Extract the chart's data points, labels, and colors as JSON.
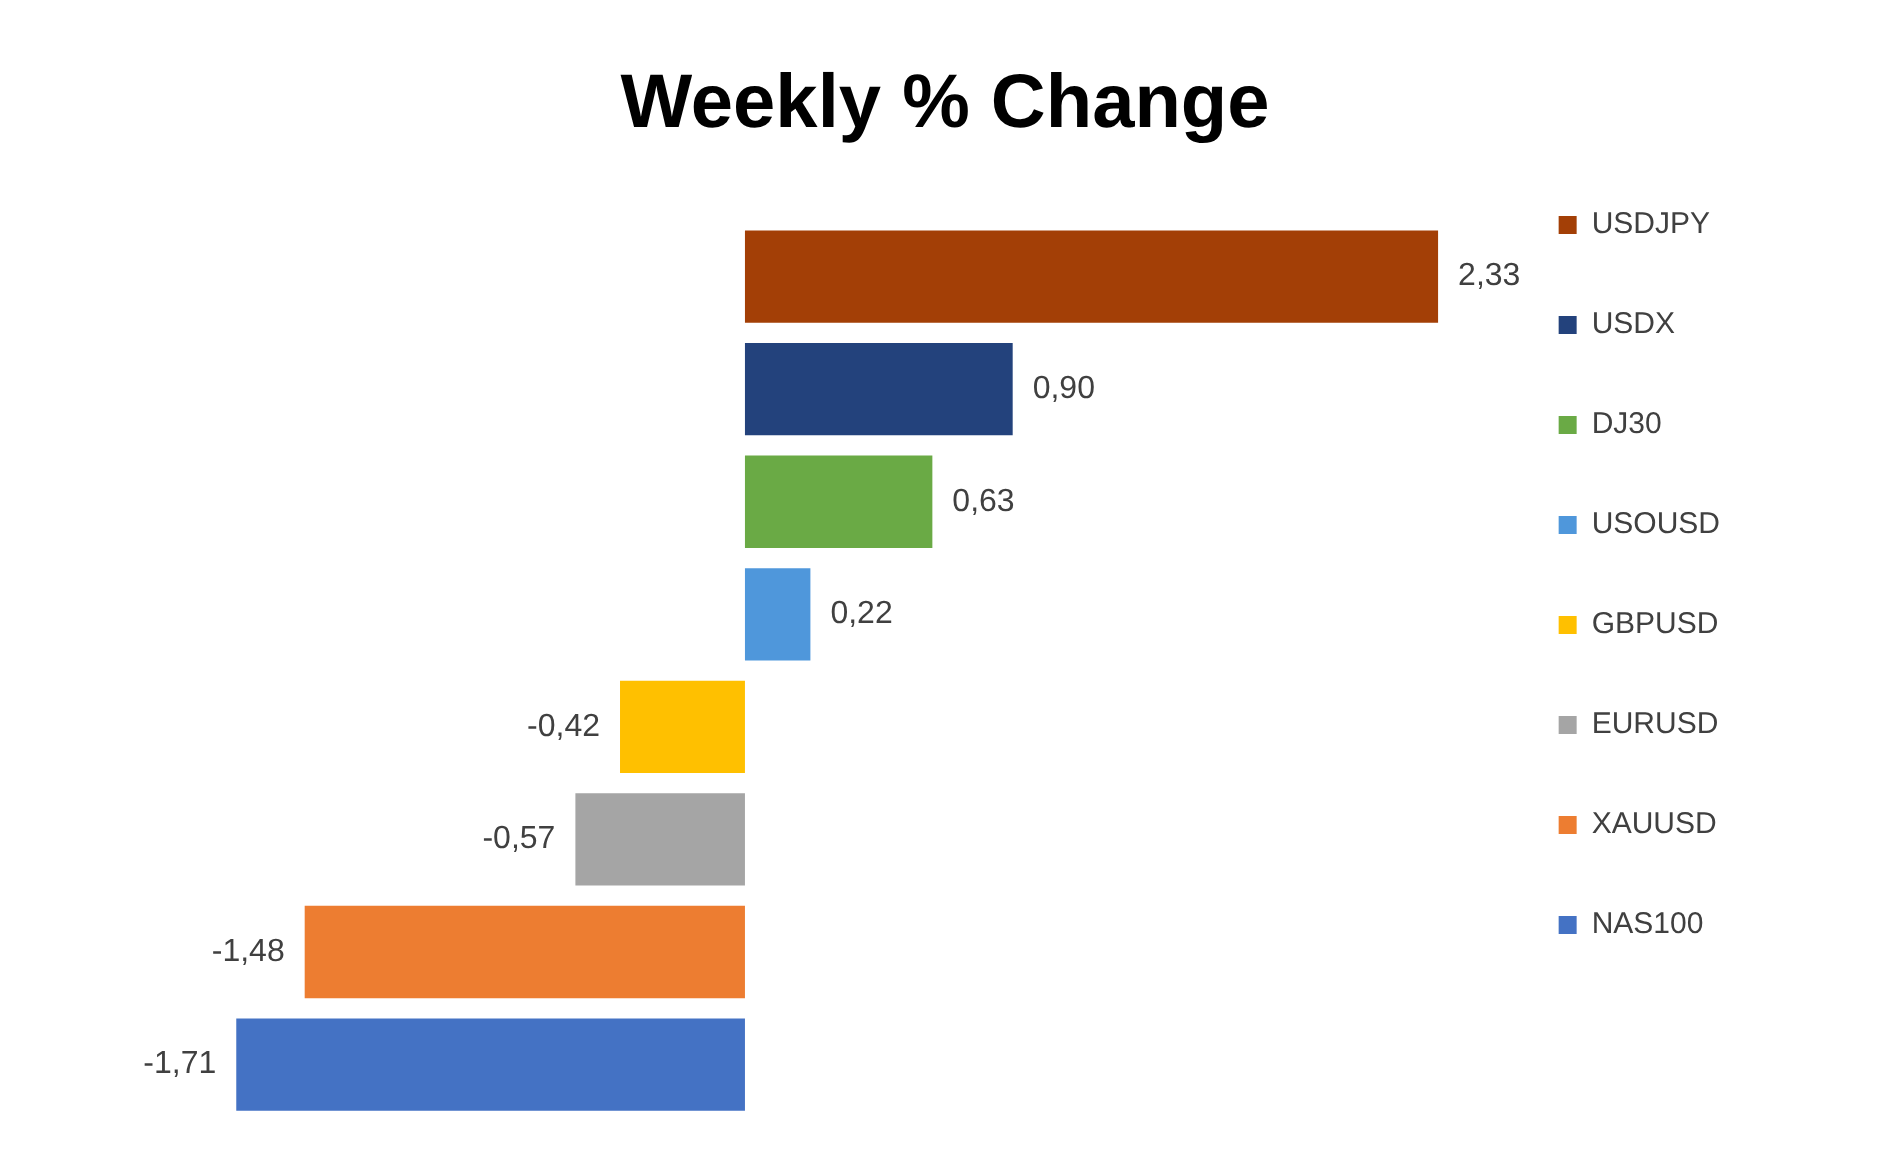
{
  "chart_data": {
    "type": "bar",
    "orientation": "horizontal",
    "title": "Weekly % Change",
    "categories": [
      null
    ],
    "series": [
      {
        "name": "USDJPY",
        "color": "#a33f06",
        "values": [
          2.33
        ],
        "value_labels": [
          "2,33"
        ]
      },
      {
        "name": "USDX",
        "color": "#23427c",
        "values": [
          0.9
        ],
        "value_labels": [
          "0,90"
        ]
      },
      {
        "name": "DJ30",
        "color": "#6aaa45",
        "values": [
          0.63
        ],
        "value_labels": [
          "0,63"
        ]
      },
      {
        "name": "USOUSD",
        "color": "#4f97db",
        "values": [
          0.22
        ],
        "value_labels": [
          "0,22"
        ]
      },
      {
        "name": "GBPUSD",
        "color": "#ffc000",
        "values": [
          -0.42
        ],
        "value_labels": [
          "-0,42"
        ]
      },
      {
        "name": "EURUSD",
        "color": "#a5a5a5",
        "values": [
          -0.57
        ],
        "value_labels": [
          "-0,57"
        ]
      },
      {
        "name": "XAUUSD",
        "color": "#ed7d31",
        "values": [
          -1.48
        ],
        "value_labels": [
          "-1,48"
        ]
      },
      {
        "name": "NAS100",
        "color": "#4472c4",
        "values": [
          -1.71
        ],
        "value_labels": [
          "-1,71"
        ]
      }
    ],
    "tick_labels": false,
    "legend": "right"
  }
}
